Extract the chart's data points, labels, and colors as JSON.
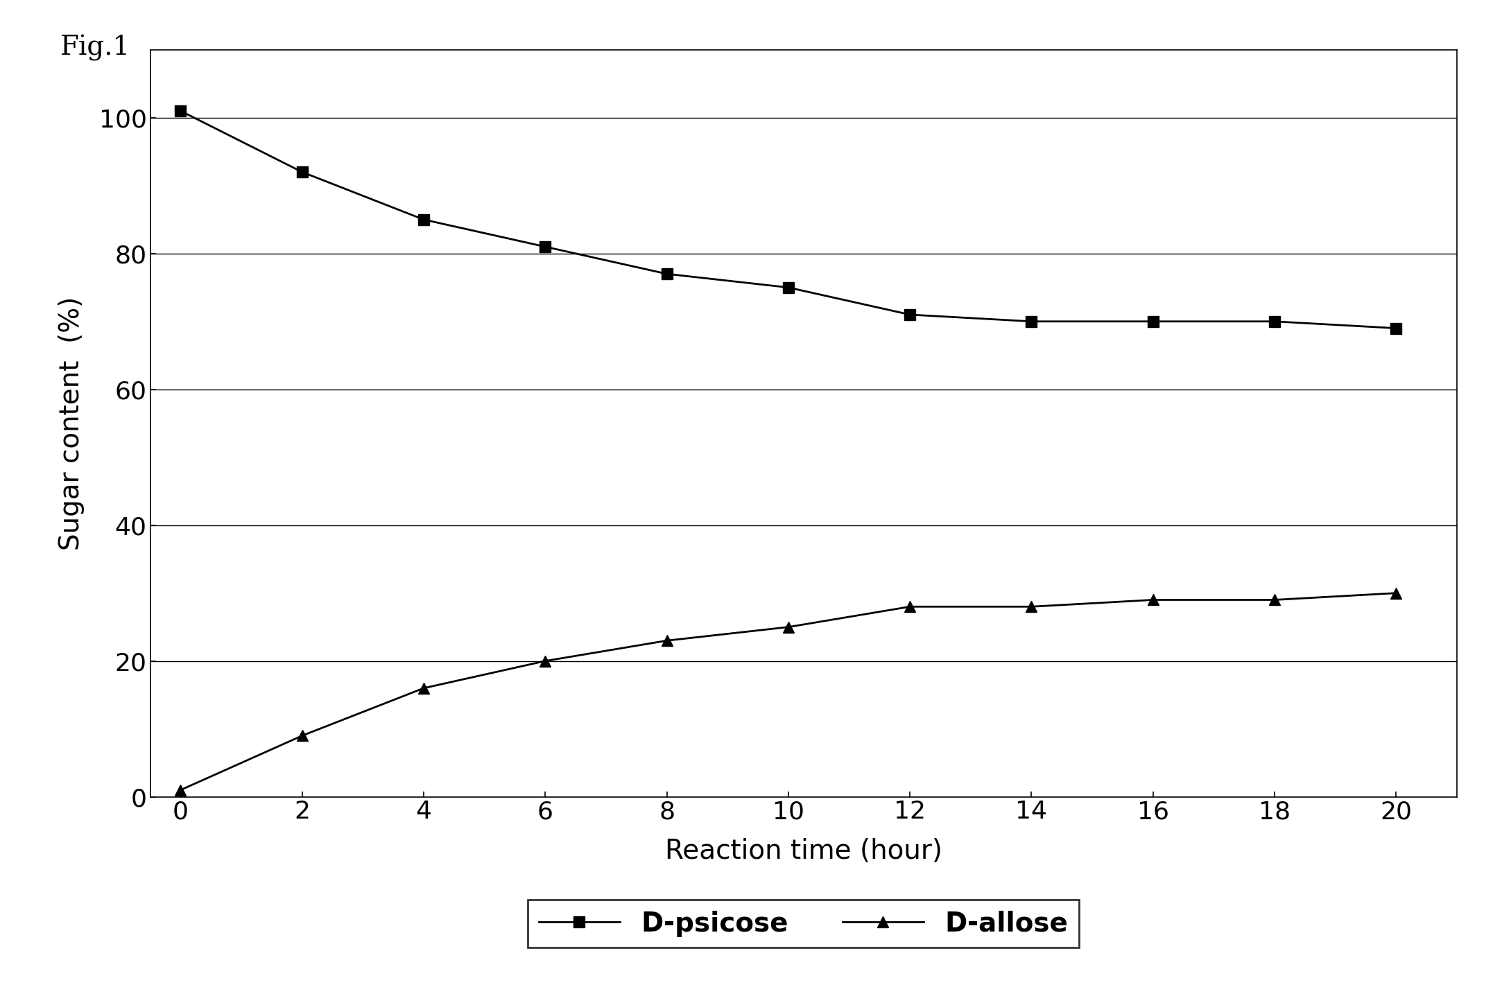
{
  "x": [
    0,
    2,
    4,
    6,
    8,
    10,
    12,
    14,
    16,
    18,
    20
  ],
  "d_psicose": [
    101,
    92,
    85,
    81,
    77,
    75,
    71,
    70,
    70,
    70,
    69
  ],
  "d_allose": [
    1,
    9,
    16,
    20,
    23,
    25,
    28,
    28,
    29,
    29,
    30
  ],
  "xlabel": "Reaction time (hour)",
  "ylabel": "Sugar content  (%)",
  "fig_label": "Fig.1",
  "legend_psicose": "D-psicose",
  "legend_allose": "D-allose",
  "xlim": [
    -0.5,
    21
  ],
  "ylim": [
    0,
    110
  ],
  "yticks": [
    0,
    20,
    40,
    60,
    80,
    100
  ],
  "xticks": [
    0,
    2,
    4,
    6,
    8,
    10,
    12,
    14,
    16,
    18,
    20
  ],
  "line_color": "#000000",
  "background_color": "#ffffff",
  "grid_color": "#000000",
  "marker_psicose": "s",
  "marker_allose": "^",
  "marker_size": 12,
  "linewidth": 2.0,
  "label_fontsize": 28,
  "tick_fontsize": 26,
  "legend_fontsize": 28,
  "fig_label_fontsize": 28
}
